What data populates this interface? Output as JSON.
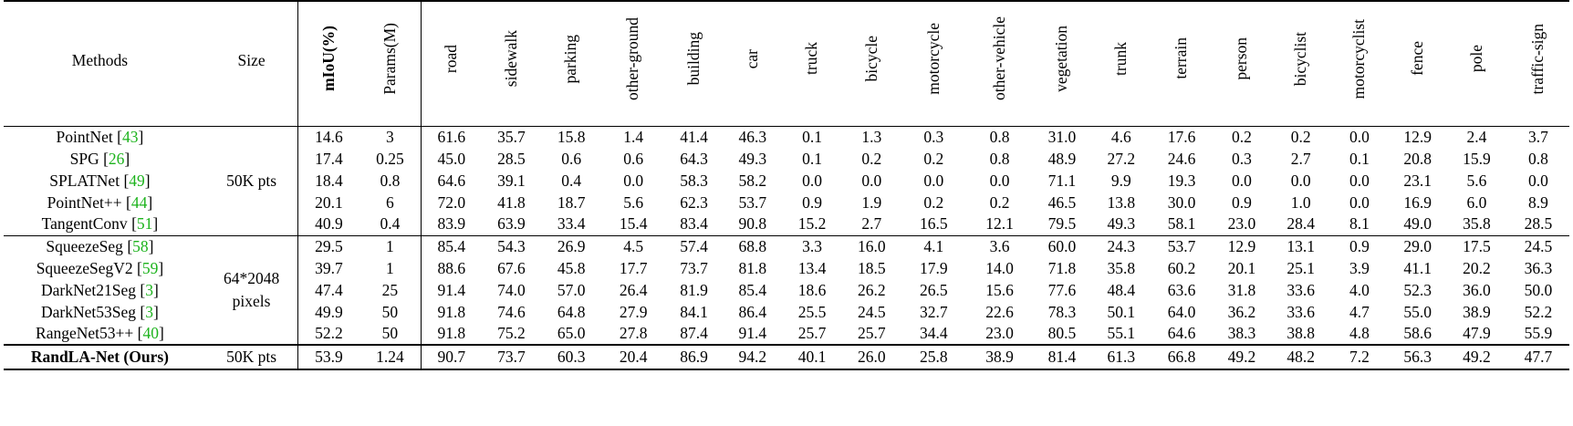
{
  "table": {
    "headers": {
      "methods": "Methods",
      "size": "Size",
      "metrics": [
        "mIoU(%)",
        "Params(M)"
      ],
      "classes": [
        "road",
        "sidewalk",
        "parking",
        "other-ground",
        "building",
        "car",
        "truck",
        "bicycle",
        "motorcycle",
        "other-vehicle",
        "vegetation",
        "trunk",
        "terrain",
        "person",
        "bicyclist",
        "motorcyclist",
        "fence",
        "pole",
        "traffic-sign"
      ]
    },
    "groups": [
      {
        "size_lines": [
          "50K pts"
        ],
        "rows": [
          {
            "name": "PointNet",
            "ref": "43",
            "values": [
              "14.6",
              "3",
              "61.6",
              "35.7",
              "15.8",
              "1.4",
              "41.4",
              "46.3",
              "0.1",
              "1.3",
              "0.3",
              "0.8",
              "31.0",
              "4.6",
              "17.6",
              "0.2",
              "0.2",
              "0.0",
              "12.9",
              "2.4",
              "3.7"
            ],
            "bold": []
          },
          {
            "name": "SPG",
            "ref": "26",
            "values": [
              "17.4",
              "0.25",
              "45.0",
              "28.5",
              "0.6",
              "0.6",
              "64.3",
              "49.3",
              "0.1",
              "0.2",
              "0.2",
              "0.8",
              "48.9",
              "27.2",
              "24.6",
              "0.3",
              "2.7",
              "0.1",
              "20.8",
              "15.9",
              "0.8"
            ],
            "bold": [
              1
            ]
          },
          {
            "name": "SPLATNet",
            "ref": "49",
            "values": [
              "18.4",
              "0.8",
              "64.6",
              "39.1",
              "0.4",
              "0.0",
              "58.3",
              "58.2",
              "0.0",
              "0.0",
              "0.0",
              "0.0",
              "71.1",
              "9.9",
              "19.3",
              "0.0",
              "0.0",
              "0.0",
              "23.1",
              "5.6",
              "0.0"
            ],
            "bold": []
          },
          {
            "name": "PointNet++",
            "ref": "44",
            "values": [
              "20.1",
              "6",
              "72.0",
              "41.8",
              "18.7",
              "5.6",
              "62.3",
              "53.7",
              "0.9",
              "1.9",
              "0.2",
              "0.2",
              "46.5",
              "13.8",
              "30.0",
              "0.9",
              "1.0",
              "0.0",
              "16.9",
              "6.0",
              "8.9"
            ],
            "bold": []
          },
          {
            "name": "TangentConv",
            "ref": "51",
            "values": [
              "40.9",
              "0.4",
              "83.9",
              "63.9",
              "33.4",
              "15.4",
              "83.4",
              "90.8",
              "15.2",
              "2.7",
              "16.5",
              "12.1",
              "79.5",
              "49.3",
              "58.1",
              "23.0",
              "28.4",
              "8.1",
              "49.0",
              "35.8",
              "28.5"
            ],
            "bold": [
              17
            ]
          }
        ]
      },
      {
        "size_lines": [
          "64*2048",
          "pixels"
        ],
        "rows": [
          {
            "name": "SqueezeSeg",
            "ref": "58",
            "values": [
              "29.5",
              "1",
              "85.4",
              "54.3",
              "26.9",
              "4.5",
              "57.4",
              "68.8",
              "3.3",
              "16.0",
              "4.1",
              "3.6",
              "60.0",
              "24.3",
              "53.7",
              "12.9",
              "13.1",
              "0.9",
              "29.0",
              "17.5",
              "24.5"
            ],
            "bold": []
          },
          {
            "name": "SqueezeSegV2",
            "ref": "59",
            "values": [
              "39.7",
              "1",
              "88.6",
              "67.6",
              "45.8",
              "17.7",
              "73.7",
              "81.8",
              "13.4",
              "18.5",
              "17.9",
              "14.0",
              "71.8",
              "35.8",
              "60.2",
              "20.1",
              "25.1",
              "3.9",
              "41.1",
              "20.2",
              "36.3"
            ],
            "bold": []
          },
          {
            "name": "DarkNet21Seg",
            "ref": "3",
            "values": [
              "47.4",
              "25",
              "91.4",
              "74.0",
              "57.0",
              "26.4",
              "81.9",
              "85.4",
              "18.6",
              "26.2",
              "26.5",
              "15.6",
              "77.6",
              "48.4",
              "63.6",
              "31.8",
              "33.6",
              "4.0",
              "52.3",
              "36.0",
              "50.0"
            ],
            "bold": [
              9
            ]
          },
          {
            "name": "DarkNet53Seg",
            "ref": "3",
            "values": [
              "49.9",
              "50",
              "91.8",
              "74.6",
              "64.8",
              "27.9",
              "84.1",
              "86.4",
              "25.5",
              "24.5",
              "32.7",
              "22.6",
              "78.3",
              "50.1",
              "64.0",
              "36.2",
              "33.6",
              "4.7",
              "55.0",
              "38.9",
              "52.2"
            ],
            "bold": [
              2,
              5
            ]
          },
          {
            "name": "RangeNet53++",
            "ref": "40",
            "values": [
              "52.2",
              "50",
              "91.8",
              "75.2",
              "65.0",
              "27.8",
              "87.4",
              "91.4",
              "25.7",
              "25.7",
              "34.4",
              "23.0",
              "80.5",
              "55.1",
              "64.6",
              "38.3",
              "38.8",
              "4.8",
              "58.6",
              "47.9",
              "55.9"
            ],
            "bold": [
              2,
              3,
              4,
              6,
              10,
              18,
              20
            ]
          }
        ]
      },
      {
        "size_lines": [
          "50K pts"
        ],
        "rows": [
          {
            "name": "RandLA-Net (Ours)",
            "ref": "",
            "values": [
              "53.9",
              "1.24",
              "90.7",
              "73.7",
              "60.3",
              "20.4",
              "86.9",
              "94.2",
              "40.1",
              "26.0",
              "25.8",
              "38.9",
              "81.4",
              "61.3",
              "66.8",
              "49.2",
              "48.2",
              "7.2",
              "56.3",
              "49.2",
              "47.7"
            ],
            "bold": [
              0,
              7,
              8,
              11,
              12,
              13,
              14,
              15,
              16,
              19
            ],
            "name_bold": true
          }
        ]
      }
    ]
  }
}
